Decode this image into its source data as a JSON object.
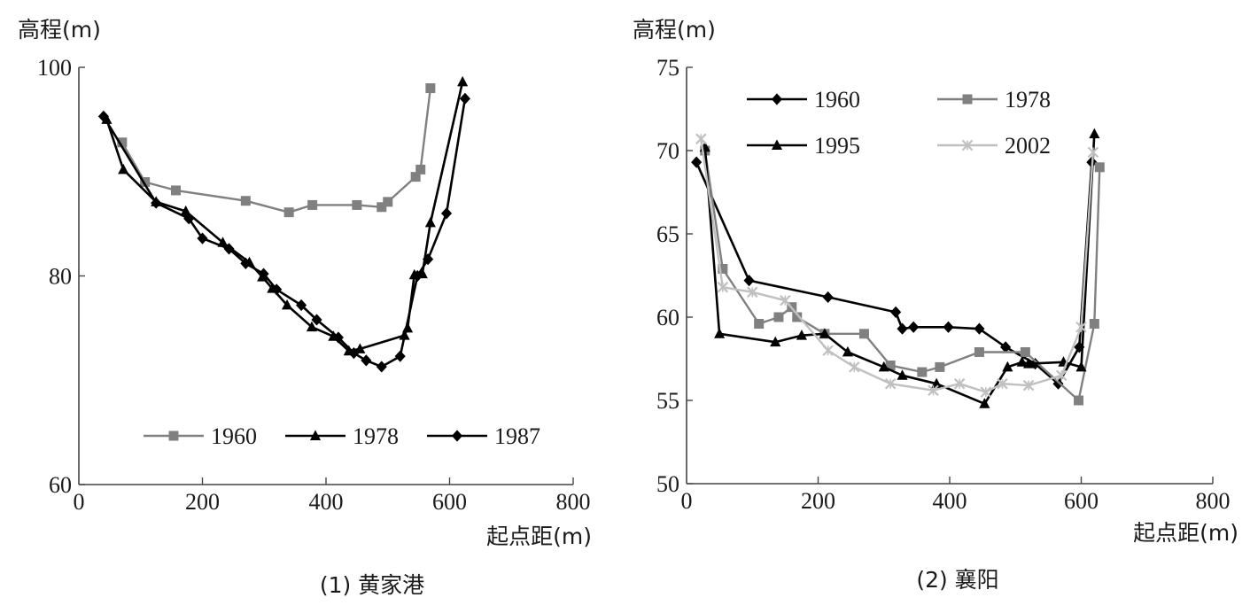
{
  "chart_data": [
    {
      "type": "line",
      "caption": "(1) 黄家港",
      "ylabel": "高程(m)",
      "xlabel": "起点距(m)",
      "xlim": [
        0,
        800
      ],
      "ylim": [
        60,
        100
      ],
      "xticks": [
        "0",
        "200",
        "400",
        "600",
        "800"
      ],
      "yticks": [
        "60",
        "80",
        "100"
      ],
      "ytick_values": [
        60,
        80,
        100
      ],
      "xtick_values": [
        0,
        200,
        400,
        600,
        800
      ],
      "grid": false,
      "legend": "bottom",
      "series": [
        {
          "name": "1960",
          "color": "#808080",
          "marker": "square",
          "x": [
            70,
            107,
            157,
            270,
            340,
            378,
            450,
            490,
            500,
            545,
            553,
            569
          ],
          "y": [
            92.8,
            89.0,
            88.2,
            87.2,
            86.1,
            86.8,
            86.8,
            86.6,
            87.1,
            89.5,
            90.2,
            98.0
          ]
        },
        {
          "name": "1978",
          "color": "#000000",
          "marker": "triangle",
          "x": [
            45,
            72,
            125,
            173,
            233,
            276,
            297,
            313,
            337,
            377,
            412,
            437,
            455,
            527,
            532,
            543,
            556,
            569,
            621
          ],
          "y": [
            95.0,
            90.2,
            87.1,
            86.2,
            83.2,
            81.3,
            79.9,
            78.8,
            77.2,
            75.1,
            74.2,
            72.8,
            73.0,
            74.3,
            75.0,
            80.1,
            80.2,
            85.1,
            98.6
          ]
        },
        {
          "name": "1987",
          "color": "#000000",
          "marker": "diamond",
          "x": [
            40,
            125,
            178,
            200,
            243,
            270,
            299,
            320,
            360,
            385,
            420,
            445,
            465,
            490,
            520,
            548,
            565,
            595,
            625
          ],
          "y": [
            95.3,
            87.0,
            85.5,
            83.6,
            82.6,
            81.2,
            80.2,
            78.7,
            77.2,
            75.8,
            74.1,
            72.6,
            71.9,
            71.3,
            72.3,
            80.0,
            81.6,
            86.0,
            97.0
          ]
        }
      ]
    },
    {
      "type": "line",
      "caption": "(2) 襄阳",
      "ylabel": "高程(m)",
      "xlabel": "起点距(m)",
      "xlim": [
        0,
        800
      ],
      "ylim": [
        50,
        75
      ],
      "xticks": [
        "0",
        "200",
        "400",
        "600",
        "800"
      ],
      "yticks": [
        "50",
        "55",
        "60",
        "65",
        "70",
        "75"
      ],
      "ytick_values": [
        50,
        55,
        60,
        65,
        70,
        75
      ],
      "xtick_values": [
        0,
        200,
        400,
        600,
        800
      ],
      "grid": false,
      "legend": "top",
      "series": [
        {
          "name": "1960",
          "color": "#000000",
          "marker": "diamond",
          "x": [
            15,
            95,
            215,
            318,
            328,
            345,
            398,
            445,
            485,
            530,
            565,
            597,
            616
          ],
          "y": [
            69.3,
            62.2,
            61.2,
            60.3,
            59.3,
            59.4,
            59.4,
            59.3,
            58.2,
            57.2,
            56.0,
            58.2,
            69.3
          ]
        },
        {
          "name": "1978",
          "color": "#808080",
          "marker": "square",
          "x": [
            28,
            55,
            110,
            140,
            160,
            168,
            210,
            270,
            310,
            358,
            385,
            445,
            515,
            596,
            620,
            628
          ],
          "y": [
            70.0,
            62.9,
            59.6,
            60.0,
            60.6,
            60.0,
            59.0,
            59.0,
            57.1,
            56.7,
            57.0,
            57.9,
            57.9,
            55.0,
            59.6,
            69.0
          ]
        },
        {
          "name": "1995",
          "color": "#000000",
          "marker": "triangle",
          "x": [
            28,
            50,
            135,
            175,
            210,
            245,
            300,
            328,
            380,
            453,
            488,
            510,
            520,
            573,
            600,
            620
          ],
          "y": [
            70.2,
            59.0,
            58.5,
            58.9,
            59.0,
            57.9,
            57.0,
            56.5,
            56.0,
            54.8,
            57.0,
            57.3,
            57.2,
            57.3,
            57.0,
            71.0
          ]
        },
        {
          "name": "2002",
          "color": "#c0c0c0",
          "marker": "x",
          "x": [
            22,
            55,
            100,
            150,
            215,
            255,
            310,
            375,
            415,
            455,
            480,
            520,
            570,
            600,
            618
          ],
          "y": [
            70.7,
            61.8,
            61.5,
            61.0,
            58.0,
            57.0,
            56.0,
            55.6,
            56.0,
            55.5,
            56.0,
            55.9,
            56.5,
            59.4,
            69.9
          ]
        }
      ]
    }
  ]
}
